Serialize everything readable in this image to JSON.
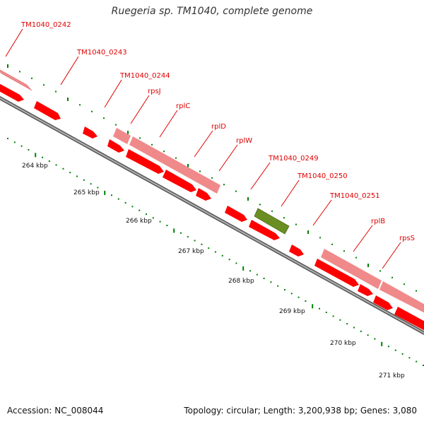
{
  "title": "Ruegeria sp. TM1040, complete genome",
  "footer": {
    "accession": "Accession: NC_008044",
    "summary": "Topology: circular; Length: 3,200,938 bp; Genes: 3,080"
  },
  "colors": {
    "cds": "#ff0000",
    "gene": "#f08a8a",
    "highlight": "#6b8e23",
    "label": "#e00000",
    "backbone": "#888888",
    "tick": "#008000"
  },
  "gene_labels": [
    "TM1040_0242",
    "TM1040_0243",
    "TM1040_0244",
    "rpsJ",
    "rplC",
    "rplD",
    "rplW",
    "TM1040_0249",
    "TM1040_0250",
    "TM1040_0251",
    "rplB",
    "rpsS"
  ],
  "kbp_labels": [
    "264 kbp",
    "265 kbp",
    "266 kbp",
    "267 kbp",
    "268 kbp",
    "269 kbp",
    "270 kbp",
    "271 kbp"
  ]
}
